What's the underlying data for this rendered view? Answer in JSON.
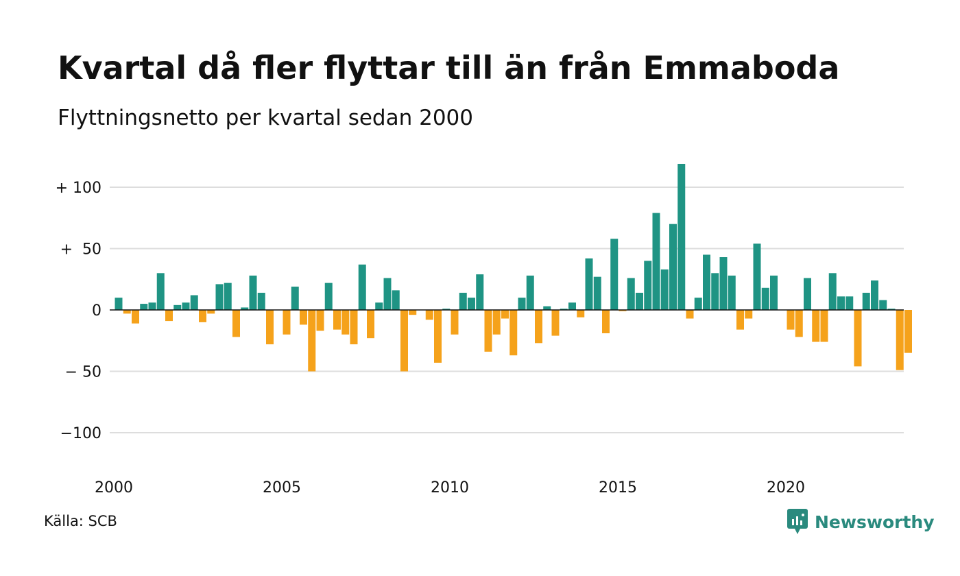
{
  "header": {
    "title": "Kvartal då fler flyttar till än från Emmaboda",
    "subtitle": "Flyttningsnetto per kvartal sedan 2000"
  },
  "footer": {
    "source": "Källa: SCB",
    "brand": "Newsworthy"
  },
  "colors": {
    "positive": "#1f9484",
    "negative": "#f5a21b",
    "grid": "#dddddd",
    "axis": "#111111",
    "brand": "#2a8a7e"
  },
  "chart_data": {
    "type": "bar",
    "title": "Kvartal då fler flyttar till än från Emmaboda",
    "subtitle": "Flyttningsnetto per kvartal sedan 2000",
    "xlabel": "",
    "ylabel": "",
    "ylim": [
      -125,
      120
    ],
    "y_ticks": [
      {
        "value": 100,
        "label": "+ 100"
      },
      {
        "value": 50,
        "label": "+  50"
      },
      {
        "value": 0,
        "label": "0"
      },
      {
        "value": -50,
        "label": "− 50"
      },
      {
        "value": -100,
        "label": "−100"
      }
    ],
    "x_ticks": [
      {
        "quarter_index": 0,
        "label": "2000"
      },
      {
        "quarter_index": 20,
        "label": "2005"
      },
      {
        "quarter_index": 40,
        "label": "2010"
      },
      {
        "quarter_index": 60,
        "label": "2015"
      },
      {
        "quarter_index": 80,
        "label": "2020"
      }
    ],
    "grid": true,
    "categories": [
      "2000 K1",
      "2000 K2",
      "2000 K3",
      "2000 K4",
      "2001 K1",
      "2001 K2",
      "2001 K3",
      "2001 K4",
      "2002 K1",
      "2002 K2",
      "2002 K3",
      "2002 K4",
      "2003 K1",
      "2003 K2",
      "2003 K3",
      "2003 K4",
      "2004 K1",
      "2004 K2",
      "2004 K3",
      "2004 K4",
      "2005 K1",
      "2005 K2",
      "2005 K3",
      "2005 K4",
      "2006 K1",
      "2006 K2",
      "2006 K3",
      "2006 K4",
      "2007 K1",
      "2007 K2",
      "2007 K3",
      "2007 K4",
      "2008 K1",
      "2008 K2",
      "2008 K3",
      "2008 K4",
      "2009 K1",
      "2009 K2",
      "2009 K3",
      "2009 K4",
      "2010 K1",
      "2010 K2",
      "2010 K3",
      "2010 K4",
      "2011 K1",
      "2011 K2",
      "2011 K3",
      "2011 K4",
      "2012 K1",
      "2012 K2",
      "2012 K3",
      "2012 K4",
      "2013 K1",
      "2013 K2",
      "2013 K3",
      "2013 K4",
      "2014 K1",
      "2014 K2",
      "2014 K3",
      "2014 K4",
      "2015 K1",
      "2015 K2",
      "2015 K3",
      "2015 K4",
      "2016 K1",
      "2016 K2",
      "2016 K3",
      "2016 K4",
      "2017 K1",
      "2017 K2",
      "2017 K3",
      "2017 K4",
      "2018 K1",
      "2018 K2",
      "2018 K3",
      "2018 K4",
      "2019 K1",
      "2019 K2",
      "2019 K3",
      "2019 K4",
      "2020 K1",
      "2020 K2",
      "2020 K3",
      "2020 K4",
      "2021 K1",
      "2021 K2",
      "2021 K3",
      "2021 K4",
      "2022 K1",
      "2022 K2",
      "2022 K3",
      "2022 K4",
      "2023 K1",
      "2023 K2",
      "2023 K3",
      "2023 K4"
    ],
    "values": [
      10,
      -3,
      -11,
      5,
      6,
      30,
      -9,
      4,
      6,
      12,
      -10,
      -3,
      21,
      22,
      -22,
      2,
      28,
      14,
      -28,
      0,
      -20,
      19,
      -12,
      -50,
      -17,
      22,
      -16,
      -20,
      -28,
      37,
      -23,
      6,
      26,
      16,
      -50,
      -4,
      0,
      -8,
      -43,
      1,
      -20,
      14,
      10,
      29,
      -34,
      -20,
      -7,
      -37,
      10,
      28,
      -27,
      3,
      -21,
      1,
      6,
      -6,
      42,
      27,
      -19,
      58,
      -1,
      26,
      14,
      40,
      79,
      33,
      70,
      119,
      -7,
      10,
      45,
      30,
      43,
      28,
      -16,
      -7,
      54,
      18,
      28,
      0,
      -16,
      -22,
      26,
      -26,
      -26,
      30,
      11,
      11,
      -46,
      14,
      24,
      8,
      1,
      -49,
      -35,
      0
    ]
  }
}
